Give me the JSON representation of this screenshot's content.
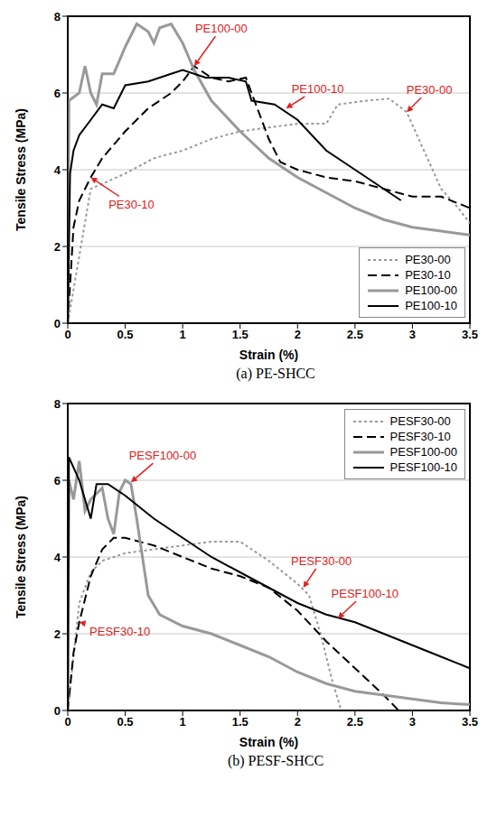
{
  "chart_data": [
    {
      "type": "line",
      "title": "(a) PE-SHCC",
      "x_label": "Strain (%)",
      "y_label": "Tensile Stress (MPa)",
      "xlim": [
        0,
        3.5
      ],
      "xticks": [
        0,
        0.5,
        1,
        1.5,
        2,
        2.5,
        3,
        3.5
      ],
      "ylim": [
        0,
        8
      ],
      "yticks": [
        0,
        2,
        4,
        6,
        8
      ],
      "grid": true,
      "legend": "lower right",
      "series": [
        {
          "name": "PE30-00",
          "color": "#999999",
          "line_style": "dotted",
          "x": [
            0,
            0.2,
            0.5,
            0.75,
            1.0,
            1.25,
            1.5,
            1.75,
            2.0,
            2.25,
            2.35,
            2.6,
            2.8,
            2.95,
            3.1,
            3.25,
            3.4,
            3.5
          ],
          "values": [
            0,
            3.5,
            3.9,
            4.3,
            4.5,
            4.8,
            5.0,
            5.1,
            5.2,
            5.2,
            5.7,
            5.8,
            5.85,
            5.5,
            4.5,
            3.5,
            3.0,
            2.6
          ]
        },
        {
          "name": "PE30-10",
          "color": "#000000",
          "line_style": "dashed",
          "x": [
            0,
            0.05,
            0.1,
            0.2,
            0.3,
            0.5,
            0.7,
            0.9,
            1.0,
            1.1,
            1.25,
            1.4,
            1.55,
            1.65,
            1.75,
            1.85,
            2.0,
            2.25,
            2.5,
            2.75,
            3.0,
            3.25,
            3.5
          ],
          "values": [
            0,
            2.5,
            3.2,
            3.8,
            4.3,
            5.0,
            5.6,
            6.0,
            6.3,
            6.7,
            6.4,
            6.3,
            6.4,
            5.6,
            4.8,
            4.2,
            4.0,
            3.8,
            3.7,
            3.5,
            3.3,
            3.3,
            3.0
          ]
        },
        {
          "name": "PE100-00",
          "color": "#999999",
          "line_style": "solid",
          "x": [
            0,
            0.01,
            0.1,
            0.15,
            0.2,
            0.25,
            0.3,
            0.4,
            0.5,
            0.6,
            0.7,
            0.75,
            0.8,
            0.9,
            1.0,
            1.1,
            1.25,
            1.5,
            1.75,
            2.0,
            2.25,
            2.5,
            2.75,
            3.0,
            3.25,
            3.5
          ],
          "values": [
            0,
            5.8,
            6.0,
            6.7,
            6.0,
            5.7,
            6.5,
            6.5,
            7.2,
            7.8,
            7.6,
            7.3,
            7.7,
            7.8,
            7.3,
            6.6,
            5.8,
            5.0,
            4.3,
            3.8,
            3.4,
            3.0,
            2.7,
            2.5,
            2.4,
            2.3
          ]
        },
        {
          "name": "PE100-10",
          "color": "#000000",
          "line_style": "solid",
          "x": [
            0,
            0.02,
            0.05,
            0.1,
            0.2,
            0.3,
            0.4,
            0.5,
            0.7,
            0.9,
            1.0,
            1.2,
            1.4,
            1.55,
            1.6,
            1.8,
            2.0,
            2.25,
            2.5,
            2.75,
            2.9
          ],
          "values": [
            0,
            3.9,
            4.5,
            4.9,
            5.3,
            5.7,
            5.6,
            6.2,
            6.3,
            6.5,
            6.6,
            6.4,
            6.4,
            6.3,
            5.8,
            5.7,
            5.3,
            4.5,
            4.0,
            3.5,
            3.2
          ]
        }
      ],
      "annotations": [
        {
          "text": "PE100-00",
          "x": 1.1,
          "y": 6.7
        },
        {
          "text": "PE100-10",
          "x": 1.9,
          "y": 5.6
        },
        {
          "text": "PE30-00",
          "x": 2.95,
          "y": 5.5
        },
        {
          "text": "PE30-10",
          "x": 0.2,
          "y": 3.8
        }
      ]
    },
    {
      "type": "line",
      "title": "(b) PESF-SHCC",
      "x_label": "Strain (%)",
      "y_label": "Tensile Stress (MPa)",
      "xlim": [
        0,
        3.5
      ],
      "xticks": [
        0,
        0.5,
        1,
        1.5,
        2,
        2.5,
        3,
        3.5
      ],
      "ylim": [
        0,
        8
      ],
      "yticks": [
        0,
        2,
        4,
        6,
        8
      ],
      "grid": true,
      "legend": "upper right",
      "series": [
        {
          "name": "PESF30-00",
          "color": "#999999",
          "line_style": "dotted",
          "x": [
            0,
            0.1,
            0.2,
            0.3,
            0.5,
            0.75,
            1.0,
            1.25,
            1.5,
            1.6,
            1.75,
            2.0,
            2.1,
            2.2,
            2.3,
            2.38
          ],
          "values": [
            0,
            2.8,
            3.6,
            3.9,
            4.1,
            4.2,
            4.3,
            4.4,
            4.4,
            4.2,
            3.9,
            3.3,
            3.0,
            2.0,
            0.8,
            0
          ]
        },
        {
          "name": "PESF30-10",
          "color": "#000000",
          "line_style": "dashed",
          "x": [
            0,
            0.05,
            0.1,
            0.2,
            0.3,
            0.4,
            0.5,
            0.75,
            1.0,
            1.25,
            1.5,
            1.75,
            2.0,
            2.25,
            2.5,
            2.75,
            2.88
          ],
          "values": [
            0,
            1.5,
            2.3,
            3.5,
            4.2,
            4.5,
            4.5,
            4.3,
            4.0,
            3.7,
            3.5,
            3.2,
            2.6,
            1.8,
            1.1,
            0.4,
            0
          ]
        },
        {
          "name": "PESF100-00",
          "color": "#999999",
          "line_style": "solid",
          "x": [
            0,
            0.01,
            0.05,
            0.1,
            0.15,
            0.2,
            0.3,
            0.35,
            0.4,
            0.45,
            0.5,
            0.55,
            0.6,
            0.7,
            0.8,
            1.0,
            1.25,
            1.5,
            1.75,
            2.0,
            2.25,
            2.5,
            2.75,
            3.0,
            3.25,
            3.5
          ],
          "values": [
            0,
            6.0,
            5.5,
            6.5,
            5.2,
            5.5,
            5.8,
            5.0,
            4.6,
            5.7,
            6.0,
            5.9,
            5.0,
            3.0,
            2.5,
            2.2,
            2.0,
            1.7,
            1.4,
            1.0,
            0.7,
            0.5,
            0.4,
            0.3,
            0.2,
            0.15
          ]
        },
        {
          "name": "PESF100-10",
          "color": "#000000",
          "line_style": "solid",
          "x": [
            0,
            0.01,
            0.1,
            0.2,
            0.25,
            0.35,
            0.5,
            0.75,
            1.0,
            1.25,
            1.5,
            1.75,
            2.0,
            2.25,
            2.5,
            2.75,
            3.0,
            3.25,
            3.5
          ],
          "values": [
            0,
            6.6,
            6.0,
            5.0,
            5.9,
            5.9,
            5.6,
            5.0,
            4.5,
            4.0,
            3.6,
            3.2,
            2.8,
            2.5,
            2.3,
            2.0,
            1.7,
            1.4,
            1.1
          ]
        }
      ],
      "annotations": [
        {
          "text": "PESF100-00",
          "x": 0.55,
          "y": 5.95
        },
        {
          "text": "PESF30-00",
          "x": 2.05,
          "y": 3.2
        },
        {
          "text": "PESF100-10",
          "x": 2.35,
          "y": 2.4
        },
        {
          "text": "PESF30-10",
          "x": 0.1,
          "y": 2.3
        }
      ]
    }
  ]
}
